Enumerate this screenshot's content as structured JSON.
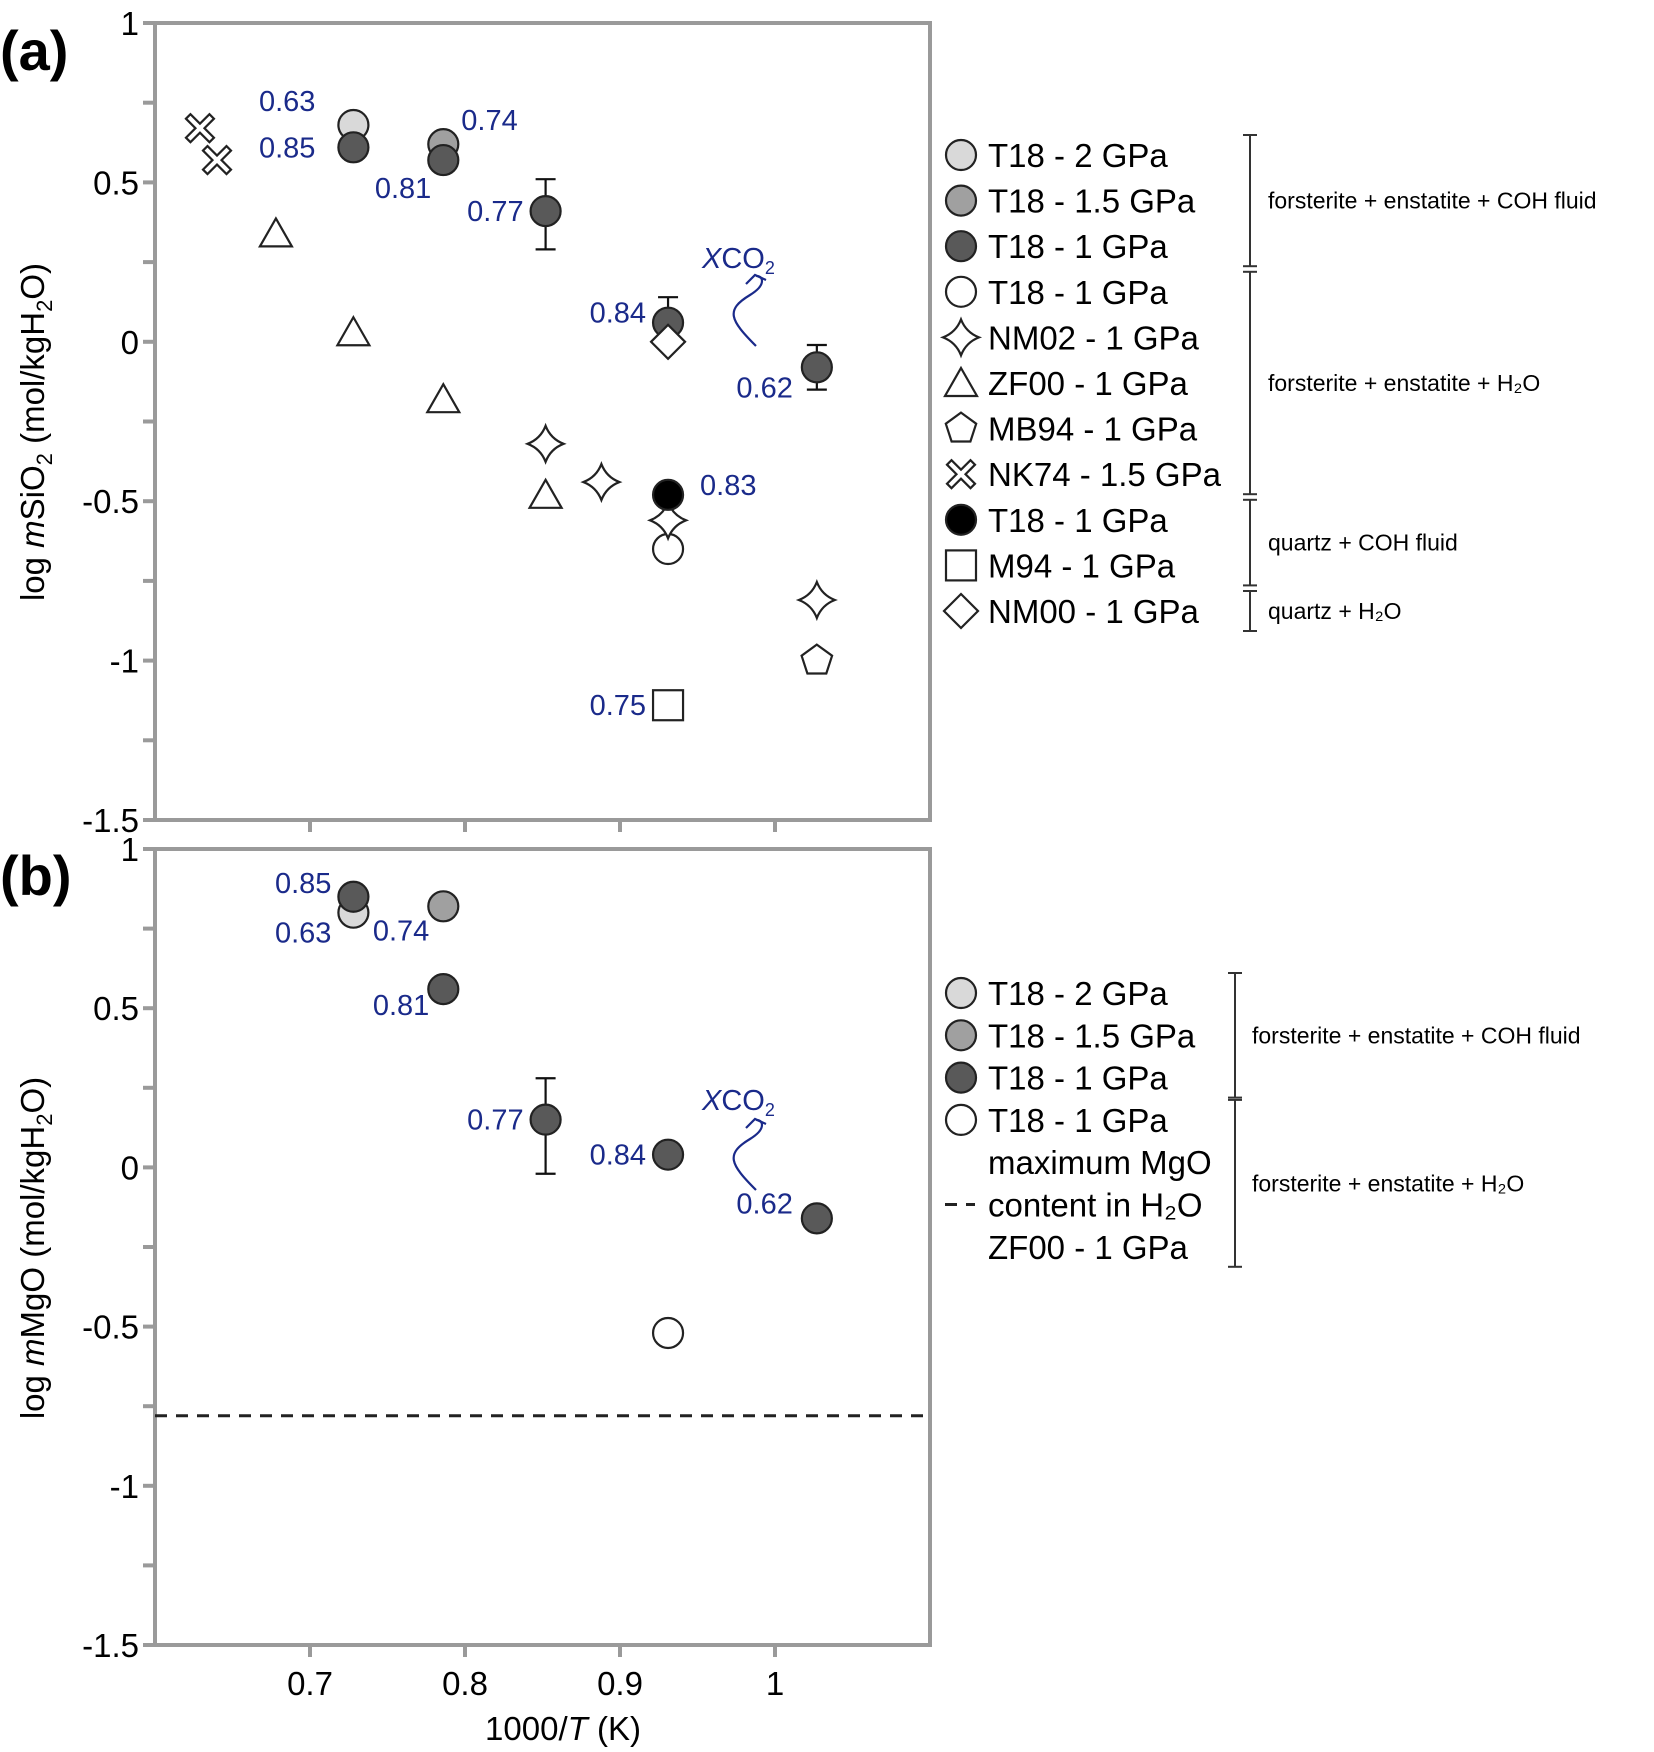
{
  "chart_data": [
    {
      "panel": "(a)",
      "type": "scatter",
      "title": "",
      "xlabel": "1000/T (K)",
      "xlabel_italic_part": "T",
      "ylabel": "log mSiO2 (mol/kgH2O)",
      "xlim": [
        0.6,
        1.1
      ],
      "ylim": [
        -1.5,
        1
      ],
      "xticks": [
        0.7,
        0.8,
        0.9,
        1.0
      ],
      "xtick_labels": [
        "0.7",
        "0.8",
        "0.9",
        "1"
      ],
      "yticks": [
        1,
        0.5,
        0,
        -0.5,
        -1,
        -1.5
      ],
      "ytick_labels": [
        "1",
        "0.5",
        "0",
        "-0.5",
        "-1",
        "-1.5"
      ],
      "grid": false,
      "legend_position": "right",
      "series": [
        {
          "name": "T18 - 2 GPa",
          "marker": "circle",
          "fill": "#d9d9d9",
          "group": 0,
          "points": [
            {
              "x": 0.728,
              "y": 0.68,
              "label": "0.63"
            }
          ]
        },
        {
          "name": "T18 - 1.5 GPa",
          "marker": "circle",
          "fill": "#a0a0a0",
          "group": 0,
          "points": [
            {
              "x": 0.786,
              "y": 0.62,
              "label": "0.74"
            }
          ]
        },
        {
          "name": "T18 - 1 GPa",
          "marker": "circle",
          "fill": "#595959",
          "group": 0,
          "points": [
            {
              "x": 0.728,
              "y": 0.61,
              "label": "0.85"
            },
            {
              "x": 0.786,
              "y": 0.57,
              "label": "0.81"
            },
            {
              "x": 0.852,
              "y": 0.41,
              "label": "0.77",
              "err_low": 0.29,
              "err_high": 0.51
            },
            {
              "x": 0.931,
              "y": 0.06,
              "label": "0.84",
              "err_low": 0.0,
              "err_high": 0.14
            },
            {
              "x": 1.027,
              "y": -0.08,
              "label": "0.62",
              "err_low": -0.15,
              "err_high": -0.01
            }
          ]
        },
        {
          "name": "T18 - 1 GPa",
          "marker": "circle",
          "fill": "#ffffff",
          "group": 1,
          "points": [
            {
              "x": 0.931,
              "y": -0.65
            }
          ]
        },
        {
          "name": "NM02 - 1 GPa",
          "marker": "star4",
          "fill": "#ffffff",
          "group": 1,
          "points": [
            {
              "x": 0.852,
              "y": -0.32
            },
            {
              "x": 0.888,
              "y": -0.44
            },
            {
              "x": 0.931,
              "y": -0.56
            },
            {
              "x": 1.027,
              "y": -0.81
            }
          ]
        },
        {
          "name": "ZF00 - 1 GPa",
          "marker": "triangle",
          "fill": "#ffffff",
          "group": 1,
          "points": [
            {
              "x": 0.678,
              "y": 0.34
            },
            {
              "x": 0.728,
              "y": 0.03
            },
            {
              "x": 0.786,
              "y": -0.18
            },
            {
              "x": 0.852,
              "y": -0.48
            }
          ]
        },
        {
          "name": "MB94 - 1 GPa",
          "marker": "pentagon",
          "fill": "#ffffff",
          "group": 1,
          "points": [
            {
              "x": 1.027,
              "y": -1.0
            }
          ]
        },
        {
          "name": "NK74 - 1.5 GPa",
          "marker": "cross",
          "fill": "#ffffff",
          "group": 1,
          "points": [
            {
              "x": 0.629,
              "y": 0.67
            },
            {
              "x": 0.64,
              "y": 0.57
            }
          ]
        },
        {
          "name": "T18 - 1 GPa",
          "marker": "circle",
          "fill": "#000000",
          "group": 2,
          "points": [
            {
              "x": 0.931,
              "y": -0.48,
              "label": "0.83"
            }
          ]
        },
        {
          "name": "M94 - 1 GPa",
          "marker": "square",
          "fill": "#ffffff",
          "group": 2,
          "points": [
            {
              "x": 0.931,
              "y": -1.14,
              "label": "0.75"
            }
          ]
        },
        {
          "name": "NM00 - 1 GPa",
          "marker": "diamond",
          "fill": "#ffffff",
          "group": 3,
          "points": [
            {
              "x": 0.931,
              "y": 0.0
            }
          ]
        }
      ],
      "groups": [
        {
          "label": "forsterite + enstatite + COH fluid"
        },
        {
          "label": "forsterite + enstatite + H₂O"
        },
        {
          "label": "quartz + COH fluid"
        },
        {
          "label": "quartz + H₂O"
        }
      ],
      "annotations": [
        {
          "text": "XCO₂",
          "type": "arrow-label",
          "meaning": "XCO2 direction"
        }
      ],
      "annotation_color": "#1a2a8a"
    },
    {
      "panel": "(b)",
      "type": "scatter",
      "title": "",
      "xlabel": "1000/T (K)",
      "ylabel": "log mMgO (mol/kgH2O)",
      "xlim": [
        0.6,
        1.1
      ],
      "ylim": [
        -1.5,
        1
      ],
      "xticks": [
        0.7,
        0.8,
        0.9,
        1.0
      ],
      "xtick_labels": [
        "0.7",
        "0.8",
        "0.9",
        "1"
      ],
      "yticks": [
        1,
        0.5,
        0,
        -0.5,
        -1,
        -1.5
      ],
      "ytick_labels": [
        "1",
        "0.5",
        "0",
        "-0.5",
        "-1",
        "-1.5"
      ],
      "grid": false,
      "legend_position": "right",
      "series": [
        {
          "name": "T18 - 2 GPa",
          "marker": "circle",
          "fill": "#d9d9d9",
          "group": 0,
          "points": [
            {
              "x": 0.728,
              "y": 0.8,
              "label": "0.63"
            }
          ]
        },
        {
          "name": "T18 - 1.5 GPa",
          "marker": "circle",
          "fill": "#a0a0a0",
          "group": 0,
          "points": [
            {
              "x": 0.786,
              "y": 0.82,
              "label": "0.74"
            }
          ]
        },
        {
          "name": "T18 - 1 GPa",
          "marker": "circle",
          "fill": "#595959",
          "group": 0,
          "points": [
            {
              "x": 0.728,
              "y": 0.85,
              "label": "0.85"
            },
            {
              "x": 0.786,
              "y": 0.56,
              "label": "0.81"
            },
            {
              "x": 0.852,
              "y": 0.15,
              "label": "0.77",
              "err_low": -0.02,
              "err_high": 0.28
            },
            {
              "x": 0.931,
              "y": 0.04,
              "label": "0.84"
            },
            {
              "x": 1.027,
              "y": -0.16,
              "label": "0.62"
            }
          ]
        },
        {
          "name": "T18 - 1 GPa",
          "marker": "circle",
          "fill": "#ffffff",
          "group": 1,
          "points": [
            {
              "x": 0.931,
              "y": -0.52
            }
          ]
        },
        {
          "name": "maximum MgO content in H₂O ZF00 - 1 GPa",
          "marker": "dashed-line",
          "group": 1,
          "hline": -0.78
        }
      ],
      "legend_lines": [
        "T18 - 2 GPa",
        "T18 - 1.5 GPa",
        "T18 - 1 GPa",
        "T18 - 1 GPa",
        "maximum MgO",
        "content in H₂O",
        "ZF00 - 1 GPa"
      ],
      "groups": [
        {
          "label": "forsterite + enstatite + COH fluid"
        },
        {
          "label": "forsterite + enstatite + H₂O"
        }
      ],
      "annotations": [
        {
          "text": "XCO₂",
          "type": "arrow-label",
          "meaning": "XCO2 direction"
        }
      ],
      "annotation_color": "#1a2a8a"
    }
  ],
  "labels": {
    "panel_a": "(a)",
    "panel_b": "(b)",
    "x_axis_prefix": "1000/",
    "x_axis_italic": "T",
    "x_axis_suffix": " (K)",
    "y_a_prefix": "log ",
    "y_a_italic": "m",
    "y_a_main": "SiO",
    "y_a_sub": "2",
    "y_a_unit": " (mol/kgH",
    "y_a_unit_sub": "2",
    "y_a_unit_end": "O)",
    "y_b_prefix": "log ",
    "y_b_italic": "m",
    "y_b_main": "MgO",
    "y_b_unit": " (mol/kgH",
    "y_b_unit_sub": "2",
    "y_b_unit_end": "O)",
    "xco2_italic": "X",
    "xco2_main": "CO",
    "xco2_sub": "2"
  }
}
